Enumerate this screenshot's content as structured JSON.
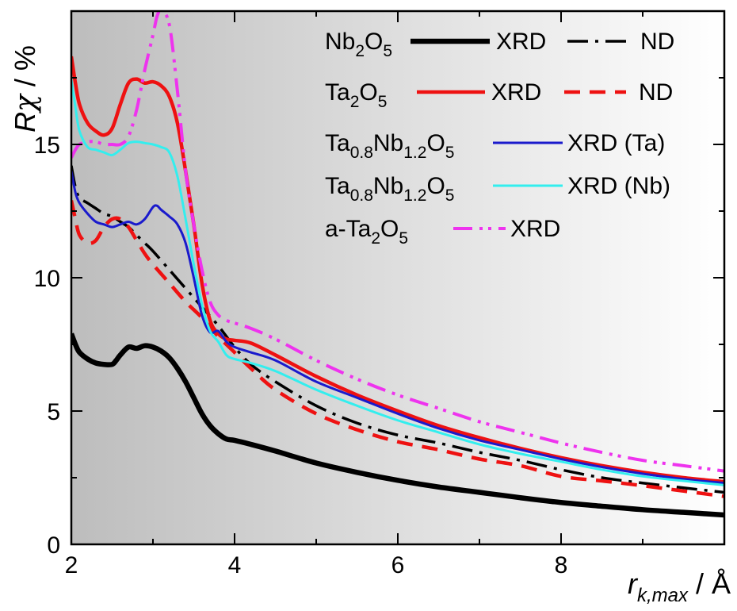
{
  "chart_data": {
    "type": "line",
    "xlabel": {
      "main": "r",
      "sub": "k,max",
      "unit": " / Å"
    },
    "ylabel": {
      "main": "R",
      "greek": "χ",
      "unit": " / %"
    },
    "xlim": [
      2,
      10
    ],
    "ylim": [
      0,
      20
    ],
    "x_ticks": [
      2,
      4,
      6,
      8
    ],
    "y_ticks": [
      0,
      5,
      10,
      15
    ],
    "x_tick_labels": [
      "2",
      "4",
      "6",
      "8"
    ],
    "y_tick_labels": [
      "0",
      "5",
      "10",
      "15"
    ],
    "background": {
      "type": "gradient",
      "from": "#bdbdbd",
      "to": "#ffffff"
    },
    "grid": false,
    "legend": {
      "placement": "top-right",
      "rows": [
        {
          "compound": [
            [
              "Nb",
              ""
            ],
            [
              "2",
              "sub"
            ],
            [
              "O",
              ""
            ],
            [
              "5",
              "sub"
            ]
          ],
          "entries": [
            {
              "series": 0,
              "label": "XRD"
            },
            {
              "series": 1,
              "label": "ND"
            }
          ]
        },
        {
          "compound": [
            [
              "Ta",
              ""
            ],
            [
              "2",
              "sub"
            ],
            [
              "O",
              ""
            ],
            [
              "5",
              "sub"
            ]
          ],
          "entries": [
            {
              "series": 2,
              "label": "XRD"
            },
            {
              "series": 3,
              "label": "ND"
            }
          ]
        },
        {
          "compound": [
            [
              "Ta",
              ""
            ],
            [
              "0.8",
              "sub"
            ],
            [
              "Nb",
              ""
            ],
            [
              "1.2",
              "sub"
            ],
            [
              "O",
              ""
            ],
            [
              "5",
              "sub"
            ]
          ],
          "entries": [
            {
              "series": 4,
              "label": "XRD (Ta)"
            }
          ]
        },
        {
          "compound": [
            [
              "Ta",
              ""
            ],
            [
              "0.8",
              "sub"
            ],
            [
              "Nb",
              ""
            ],
            [
              "1.2",
              "sub"
            ],
            [
              "O",
              ""
            ],
            [
              "5",
              "sub"
            ]
          ],
          "entries": [
            {
              "series": 5,
              "label": "XRD (Nb)"
            }
          ]
        },
        {
          "compound": [
            [
              "a-Ta",
              ""
            ],
            [
              "2",
              "sub"
            ],
            [
              "O",
              ""
            ],
            [
              "5",
              "sub"
            ]
          ],
          "entries": [
            {
              "series": 6,
              "label": "XRD"
            }
          ]
        }
      ]
    },
    "series": [
      {
        "color": "#000000",
        "dash": "solid",
        "points": [
          [
            2.0,
            7.9
          ],
          [
            2.05,
            7.5
          ],
          [
            2.1,
            7.2
          ],
          [
            2.2,
            6.95
          ],
          [
            2.3,
            6.8
          ],
          [
            2.4,
            6.75
          ],
          [
            2.5,
            6.75
          ],
          [
            2.55,
            6.9
          ],
          [
            2.6,
            7.1
          ],
          [
            2.7,
            7.4
          ],
          [
            2.8,
            7.35
          ],
          [
            2.9,
            7.45
          ],
          [
            3.0,
            7.4
          ],
          [
            3.1,
            7.25
          ],
          [
            3.2,
            7.0
          ],
          [
            3.3,
            6.6
          ],
          [
            3.4,
            6.1
          ],
          [
            3.5,
            5.5
          ],
          [
            3.6,
            4.9
          ],
          [
            3.7,
            4.45
          ],
          [
            3.8,
            4.15
          ],
          [
            3.9,
            3.95
          ],
          [
            4.0,
            3.9
          ],
          [
            4.2,
            3.75
          ],
          [
            4.5,
            3.5
          ],
          [
            5.0,
            3.05
          ],
          [
            5.5,
            2.7
          ],
          [
            6.0,
            2.4
          ],
          [
            6.5,
            2.15
          ],
          [
            7.0,
            1.95
          ],
          [
            7.5,
            1.75
          ],
          [
            8.0,
            1.57
          ],
          [
            8.5,
            1.43
          ],
          [
            9.0,
            1.3
          ],
          [
            9.5,
            1.2
          ],
          [
            10.0,
            1.1
          ]
        ]
      },
      {
        "color": "#000000",
        "dash": "dashdot",
        "points": [
          [
            2.0,
            14.2
          ],
          [
            2.05,
            13.4
          ],
          [
            2.1,
            13.0
          ],
          [
            2.2,
            12.8
          ],
          [
            2.3,
            12.6
          ],
          [
            2.4,
            12.4
          ],
          [
            2.5,
            12.3
          ],
          [
            2.6,
            12.1
          ],
          [
            2.7,
            11.9
          ],
          [
            2.8,
            11.6
          ],
          [
            2.9,
            11.3
          ],
          [
            3.0,
            11.0
          ],
          [
            3.2,
            10.3
          ],
          [
            3.4,
            9.6
          ],
          [
            3.6,
            8.9
          ],
          [
            3.8,
            8.2
          ],
          [
            4.0,
            7.4
          ],
          [
            4.2,
            6.75
          ],
          [
            4.5,
            6.1
          ],
          [
            5.0,
            5.2
          ],
          [
            5.5,
            4.55
          ],
          [
            6.0,
            4.1
          ],
          [
            6.5,
            3.8
          ],
          [
            7.0,
            3.45
          ],
          [
            7.5,
            3.15
          ],
          [
            8.0,
            2.8
          ],
          [
            8.5,
            2.5
          ],
          [
            9.0,
            2.3
          ],
          [
            9.5,
            2.12
          ],
          [
            10.0,
            1.95
          ]
        ]
      },
      {
        "color": "#ee1111",
        "dash": "solid",
        "points": [
          [
            2.0,
            18.3
          ],
          [
            2.05,
            17.3
          ],
          [
            2.1,
            16.5
          ],
          [
            2.2,
            15.8
          ],
          [
            2.3,
            15.5
          ],
          [
            2.4,
            15.35
          ],
          [
            2.5,
            15.6
          ],
          [
            2.6,
            16.5
          ],
          [
            2.7,
            17.3
          ],
          [
            2.8,
            17.45
          ],
          [
            2.9,
            17.3
          ],
          [
            3.0,
            17.35
          ],
          [
            3.1,
            17.2
          ],
          [
            3.2,
            16.8
          ],
          [
            3.3,
            15.8
          ],
          [
            3.4,
            14.0
          ],
          [
            3.5,
            12.0
          ],
          [
            3.6,
            9.8
          ],
          [
            3.7,
            8.4
          ],
          [
            3.8,
            7.9
          ],
          [
            3.9,
            7.7
          ],
          [
            4.0,
            7.65
          ],
          [
            4.2,
            7.55
          ],
          [
            4.5,
            7.1
          ],
          [
            5.0,
            6.3
          ],
          [
            5.5,
            5.6
          ],
          [
            6.0,
            5.0
          ],
          [
            6.5,
            4.45
          ],
          [
            7.0,
            4.0
          ],
          [
            7.5,
            3.6
          ],
          [
            8.0,
            3.25
          ],
          [
            8.5,
            2.95
          ],
          [
            9.0,
            2.7
          ],
          [
            9.5,
            2.5
          ],
          [
            10.0,
            2.35
          ]
        ]
      },
      {
        "color": "#ee1111",
        "dash": "dash",
        "points": [
          [
            2.0,
            12.9
          ],
          [
            2.05,
            12.2
          ],
          [
            2.1,
            11.6
          ],
          [
            2.2,
            11.3
          ],
          [
            2.3,
            11.4
          ],
          [
            2.4,
            11.9
          ],
          [
            2.5,
            12.2
          ],
          [
            2.6,
            12.2
          ],
          [
            2.7,
            11.9
          ],
          [
            2.8,
            11.4
          ],
          [
            2.9,
            10.9
          ],
          [
            3.0,
            10.5
          ],
          [
            3.2,
            9.8
          ],
          [
            3.4,
            9.1
          ],
          [
            3.6,
            8.5
          ],
          [
            3.8,
            7.8
          ],
          [
            4.0,
            7.2
          ],
          [
            4.2,
            6.6
          ],
          [
            4.5,
            5.8
          ],
          [
            5.0,
            4.9
          ],
          [
            5.5,
            4.3
          ],
          [
            6.0,
            3.85
          ],
          [
            6.5,
            3.55
          ],
          [
            7.0,
            3.2
          ],
          [
            7.5,
            2.95
          ],
          [
            8.0,
            2.55
          ],
          [
            8.5,
            2.38
          ],
          [
            9.0,
            2.2
          ],
          [
            9.5,
            2.0
          ],
          [
            10.0,
            1.8
          ]
        ]
      },
      {
        "color": "#1a1acc",
        "dash": "solid",
        "points": [
          [
            2.0,
            14.0
          ],
          [
            2.05,
            13.2
          ],
          [
            2.1,
            12.8
          ],
          [
            2.2,
            12.4
          ],
          [
            2.3,
            12.1
          ],
          [
            2.4,
            12.0
          ],
          [
            2.5,
            11.9
          ],
          [
            2.6,
            12.0
          ],
          [
            2.7,
            12.1
          ],
          [
            2.8,
            12.0
          ],
          [
            2.9,
            12.2
          ],
          [
            3.0,
            12.65
          ],
          [
            3.05,
            12.7
          ],
          [
            3.1,
            12.55
          ],
          [
            3.2,
            12.3
          ],
          [
            3.3,
            12.0
          ],
          [
            3.4,
            11.3
          ],
          [
            3.5,
            10.0
          ],
          [
            3.6,
            8.6
          ],
          [
            3.7,
            7.95
          ],
          [
            3.8,
            8.0
          ],
          [
            3.9,
            7.6
          ],
          [
            4.0,
            7.4
          ],
          [
            4.2,
            7.2
          ],
          [
            4.5,
            6.9
          ],
          [
            5.0,
            6.1
          ],
          [
            5.5,
            5.5
          ],
          [
            6.0,
            4.9
          ],
          [
            6.5,
            4.35
          ],
          [
            7.0,
            3.9
          ],
          [
            7.5,
            3.55
          ],
          [
            8.0,
            3.2
          ],
          [
            8.5,
            2.9
          ],
          [
            9.0,
            2.65
          ],
          [
            9.5,
            2.45
          ],
          [
            10.0,
            2.3
          ]
        ]
      },
      {
        "color": "#33eeee",
        "dash": "solid",
        "points": [
          [
            2.0,
            17.4
          ],
          [
            2.05,
            16.4
          ],
          [
            2.1,
            15.5
          ],
          [
            2.2,
            14.9
          ],
          [
            2.3,
            14.8
          ],
          [
            2.4,
            14.7
          ],
          [
            2.5,
            14.6
          ],
          [
            2.6,
            14.8
          ],
          [
            2.7,
            15.05
          ],
          [
            2.8,
            15.1
          ],
          [
            2.9,
            15.05
          ],
          [
            3.0,
            15.0
          ],
          [
            3.1,
            14.9
          ],
          [
            3.2,
            14.7
          ],
          [
            3.3,
            13.8
          ],
          [
            3.4,
            12.2
          ],
          [
            3.5,
            10.5
          ],
          [
            3.6,
            9.0
          ],
          [
            3.7,
            8.0
          ],
          [
            3.8,
            7.6
          ],
          [
            3.9,
            7.1
          ],
          [
            4.0,
            6.95
          ],
          [
            4.2,
            6.8
          ],
          [
            4.5,
            6.5
          ],
          [
            5.0,
            5.8
          ],
          [
            5.5,
            5.2
          ],
          [
            6.0,
            4.65
          ],
          [
            6.5,
            4.2
          ],
          [
            7.0,
            3.75
          ],
          [
            7.5,
            3.4
          ],
          [
            8.0,
            3.1
          ],
          [
            8.5,
            2.8
          ],
          [
            9.0,
            2.55
          ],
          [
            9.5,
            2.38
          ],
          [
            10.0,
            2.22
          ]
        ]
      },
      {
        "color": "#ee33ee",
        "dash": "dashdotdot",
        "points": [
          [
            2.0,
            14.5
          ],
          [
            2.05,
            14.8
          ],
          [
            2.1,
            15.0
          ],
          [
            2.2,
            15.1
          ],
          [
            2.3,
            15.1
          ],
          [
            2.4,
            15.0
          ],
          [
            2.5,
            15.0
          ],
          [
            2.6,
            15.0
          ],
          [
            2.7,
            15.3
          ],
          [
            2.8,
            16.3
          ],
          [
            2.9,
            17.8
          ],
          [
            3.0,
            19.1
          ],
          [
            3.05,
            19.8
          ],
          [
            3.1,
            20.0
          ],
          [
            3.2,
            19.5
          ],
          [
            3.3,
            17.0
          ],
          [
            3.4,
            14.0
          ],
          [
            3.5,
            12.0
          ],
          [
            3.6,
            10.3
          ],
          [
            3.7,
            9.1
          ],
          [
            3.8,
            8.6
          ],
          [
            3.9,
            8.4
          ],
          [
            4.0,
            8.3
          ],
          [
            4.2,
            8.1
          ],
          [
            4.5,
            7.7
          ],
          [
            5.0,
            6.9
          ],
          [
            5.5,
            6.2
          ],
          [
            6.0,
            5.6
          ],
          [
            6.5,
            5.1
          ],
          [
            7.0,
            4.6
          ],
          [
            7.5,
            4.2
          ],
          [
            8.0,
            3.8
          ],
          [
            8.5,
            3.45
          ],
          [
            9.0,
            3.15
          ],
          [
            9.5,
            2.95
          ],
          [
            10.0,
            2.75
          ]
        ]
      }
    ]
  }
}
